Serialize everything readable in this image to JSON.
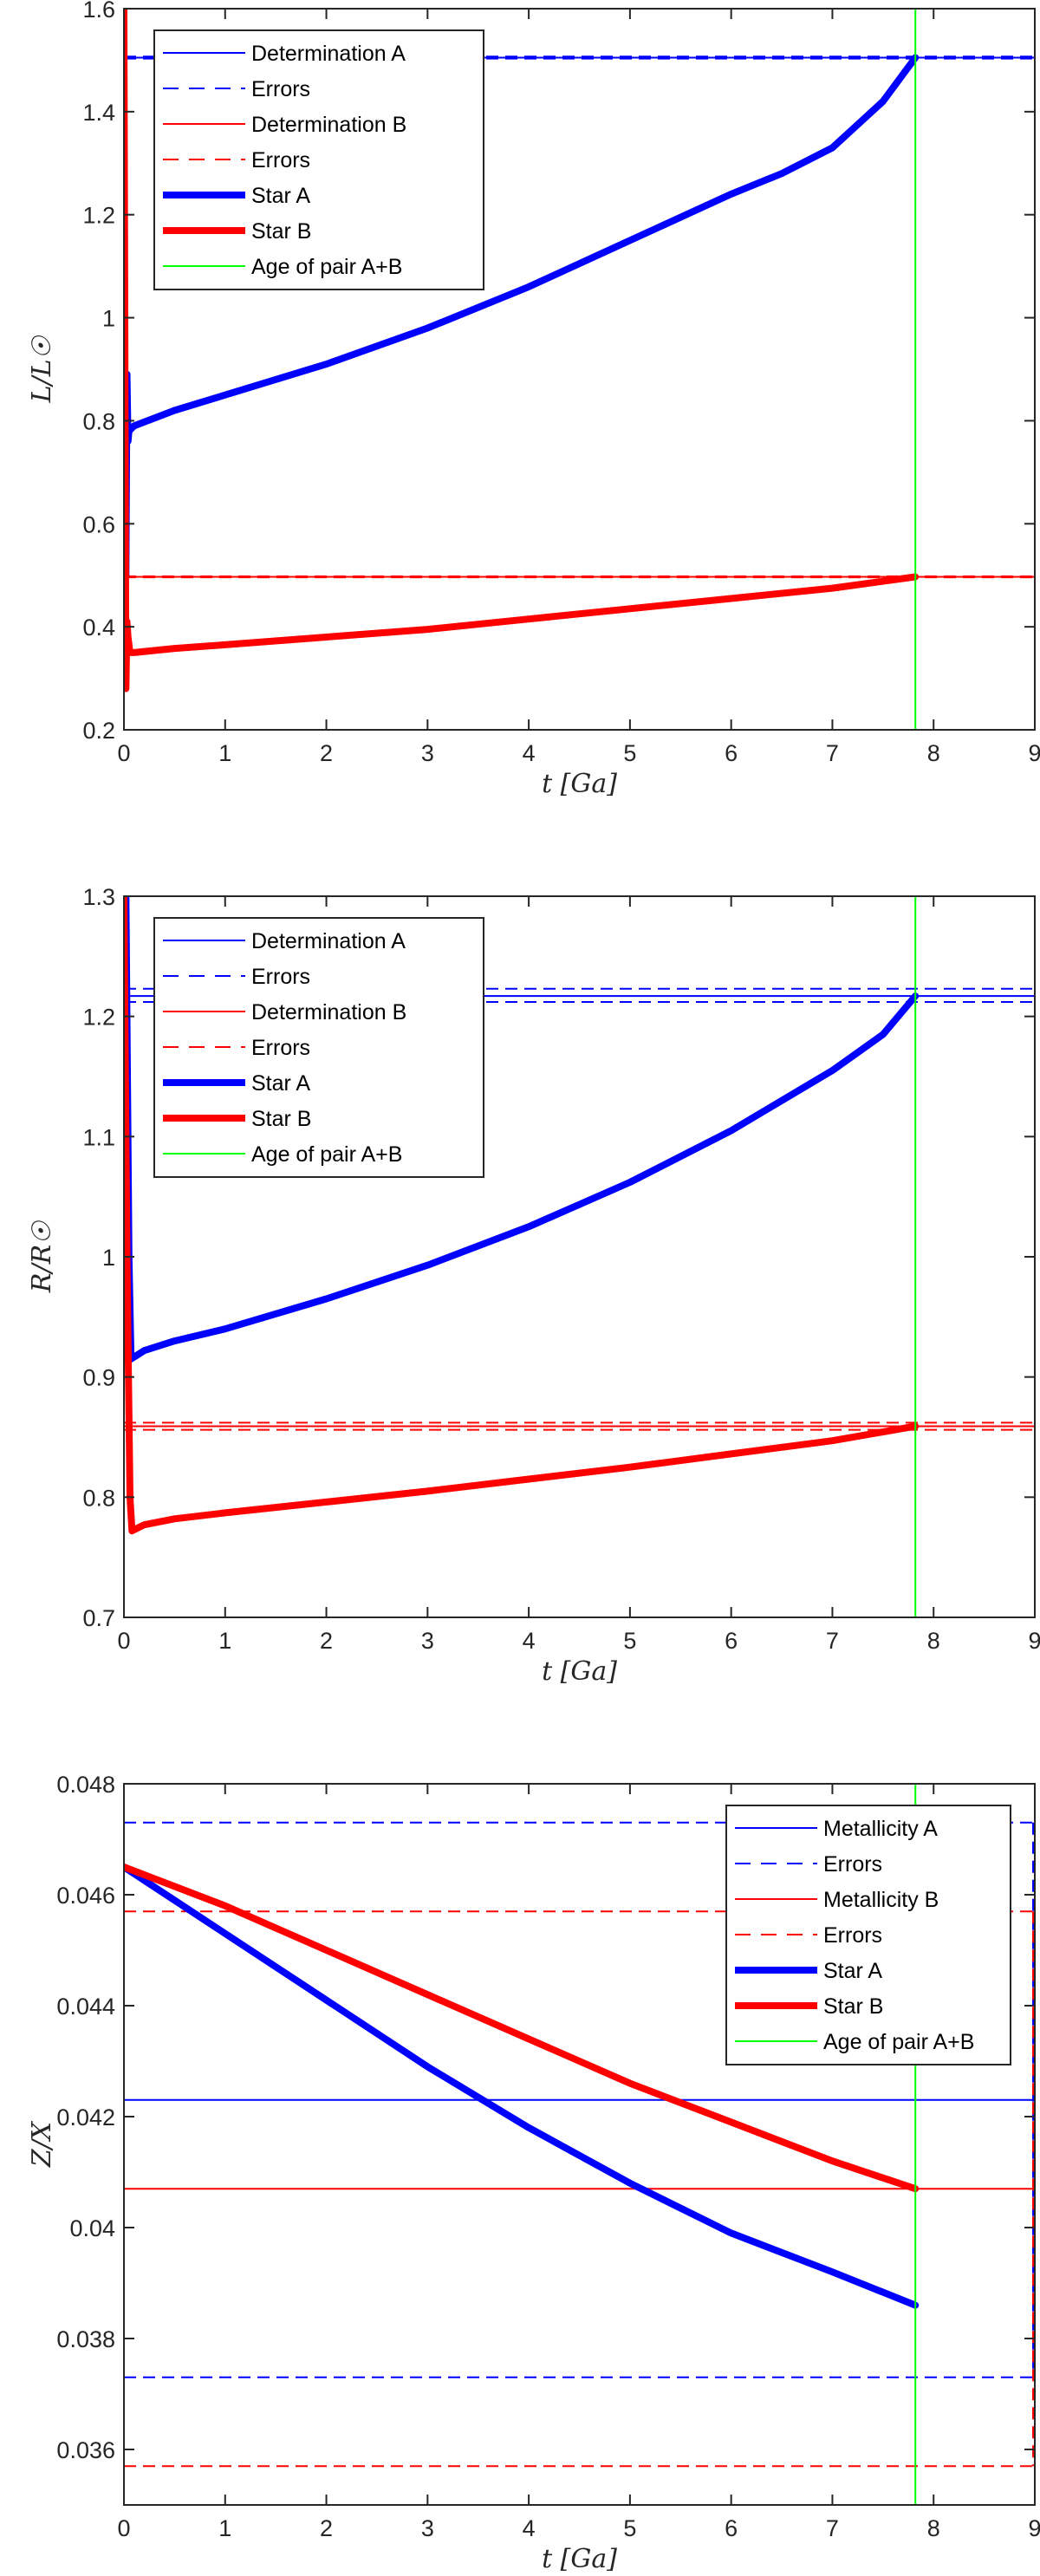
{
  "chart_data": [
    {
      "type": "line",
      "xlabel": "t [Ga]",
      "ylabel": "L/L☉",
      "xlim": [
        0,
        9
      ],
      "ylim": [
        0.2,
        1.6
      ],
      "xticks": [
        "0",
        "1",
        "2",
        "3",
        "4",
        "5",
        "6",
        "7",
        "8",
        "9"
      ],
      "yticks": [
        "0.2",
        "0.4",
        "0.6",
        "0.8",
        "1",
        "1.2",
        "1.4",
        "1.6"
      ],
      "grid": false,
      "legend_position": "top-left",
      "series": [
        {
          "name": "Determination A",
          "style": "thin-solid",
          "color": "#0000ff",
          "y_const": 1.505
        },
        {
          "name": "Errors",
          "style": "dashed",
          "color": "#0000ff",
          "y_const_list": [
            1.507,
            1.503
          ]
        },
        {
          "name": "Determination B",
          "style": "thin-solid",
          "color": "#ff0000",
          "y_const": 0.497
        },
        {
          "name": "Errors",
          "style": "dashed",
          "color": "#ff0000",
          "y_const_list": [
            0.498,
            0.496
          ]
        },
        {
          "name": "Star A",
          "style": "thick",
          "color": "#0000ff",
          "x": [
            0.02,
            0.03,
            0.04,
            0.05,
            0.1,
            0.5,
            1,
            2,
            3,
            4,
            5,
            6,
            6.5,
            7,
            7.5,
            7.82
          ],
          "y": [
            0.5,
            0.89,
            0.76,
            0.78,
            0.79,
            0.82,
            0.85,
            0.91,
            0.98,
            1.06,
            1.15,
            1.24,
            1.28,
            1.33,
            1.42,
            1.505
          ]
        },
        {
          "name": "Star B",
          "style": "thick",
          "color": "#ff0000",
          "x": [
            0.0,
            0.01,
            0.02,
            0.03,
            0.04,
            0.06,
            0.1,
            0.5,
            1,
            2,
            3,
            4,
            5,
            6,
            7,
            7.82
          ],
          "y": [
            1.6,
            0.9,
            0.28,
            0.41,
            0.38,
            0.35,
            0.35,
            0.358,
            0.365,
            0.38,
            0.395,
            0.415,
            0.435,
            0.455,
            0.475,
            0.497
          ]
        },
        {
          "name": "Age of pair A+B",
          "style": "vertical",
          "color": "#00ff00",
          "x_const": 7.82
        }
      ]
    },
    {
      "type": "line",
      "xlabel": "t [Ga]",
      "ylabel": "R/R☉",
      "xlim": [
        0,
        9
      ],
      "ylim": [
        0.7,
        1.3
      ],
      "xticks": [
        "0",
        "1",
        "2",
        "3",
        "4",
        "5",
        "6",
        "7",
        "8",
        "9"
      ],
      "yticks": [
        "0.7",
        "0.8",
        "0.9",
        "1",
        "1.1",
        "1.2",
        "1.3"
      ],
      "grid": false,
      "legend_position": "top-left",
      "series": [
        {
          "name": "Determination A",
          "style": "thin-solid",
          "color": "#0000ff",
          "y_const": 1.217
        },
        {
          "name": "Errors",
          "style": "dashed",
          "color": "#0000ff",
          "y_const_list": [
            1.223,
            1.212
          ]
        },
        {
          "name": "Determination B",
          "style": "thin-solid",
          "color": "#ff0000",
          "y_const": 0.859
        },
        {
          "name": "Errors",
          "style": "dashed",
          "color": "#ff0000",
          "y_const_list": [
            0.862,
            0.856
          ]
        },
        {
          "name": "Star A",
          "style": "thick",
          "color": "#0000ff",
          "x": [
            0.02,
            0.05,
            0.07,
            0.2,
            0.5,
            1,
            2,
            3,
            4,
            5,
            6,
            7,
            7.5,
            7.82
          ],
          "y": [
            1.3,
            1.0,
            0.915,
            0.922,
            0.93,
            0.94,
            0.965,
            0.993,
            1.025,
            1.062,
            1.105,
            1.155,
            1.185,
            1.217
          ]
        },
        {
          "name": "Star B",
          "style": "thick",
          "color": "#ff0000",
          "x": [
            0.0,
            0.03,
            0.06,
            0.08,
            0.2,
            0.5,
            1,
            2,
            3,
            4,
            5,
            6,
            7,
            7.82
          ],
          "y": [
            1.3,
            1.0,
            0.8,
            0.772,
            0.777,
            0.782,
            0.787,
            0.796,
            0.805,
            0.815,
            0.825,
            0.836,
            0.847,
            0.859
          ]
        },
        {
          "name": "Age of pair A+B",
          "style": "vertical",
          "color": "#00ff00",
          "x_const": 7.82
        }
      ]
    },
    {
      "type": "line",
      "xlabel": "t [Ga]",
      "ylabel": "Z/X",
      "xlim": [
        0,
        9
      ],
      "ylim": [
        0.035,
        0.048
      ],
      "xticks": [
        "0",
        "1",
        "2",
        "3",
        "4",
        "5",
        "6",
        "7",
        "8",
        "9"
      ],
      "yticks": [
        "0.036",
        "0.038",
        "0.04",
        "0.042",
        "0.044",
        "0.046",
        "0.048"
      ],
      "grid": false,
      "legend_position": "top-right",
      "series": [
        {
          "name": "Metallicity A",
          "style": "thin-solid",
          "color": "#0000ff",
          "y_const": 0.0423
        },
        {
          "name": "Errors",
          "style": "dashed",
          "color": "#0000ff",
          "y_const_list": [
            0.0473,
            0.0373
          ]
        },
        {
          "name": "Metallicity B",
          "style": "thin-solid",
          "color": "#ff0000",
          "y_const": 0.0407
        },
        {
          "name": "Errors",
          "style": "dashed",
          "color": "#ff0000",
          "y_const_list": [
            0.0457,
            0.0357
          ]
        },
        {
          "name": "Star A",
          "style": "thick",
          "color": "#0000ff",
          "x": [
            0,
            1,
            2,
            3,
            4,
            5,
            6,
            7,
            7.82
          ],
          "y": [
            0.0465,
            0.0453,
            0.0441,
            0.0429,
            0.0418,
            0.0408,
            0.0399,
            0.0392,
            0.0386
          ]
        },
        {
          "name": "Star B",
          "style": "thick",
          "color": "#ff0000",
          "x": [
            0,
            1,
            2,
            3,
            4,
            5,
            6,
            7,
            7.82
          ],
          "y": [
            0.0465,
            0.0458,
            0.045,
            0.0442,
            0.0434,
            0.0426,
            0.0419,
            0.0412,
            0.0407
          ]
        },
        {
          "name": "Age of pair A+B",
          "style": "vertical",
          "color": "#00ff00",
          "x_const": 7.82
        }
      ]
    }
  ]
}
